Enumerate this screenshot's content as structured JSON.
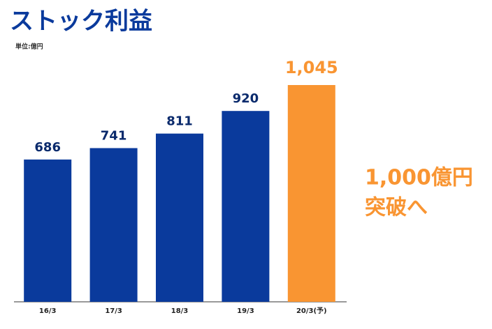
{
  "chart_data": {
    "type": "bar",
    "title": "ストック利益",
    "subtitle": "単位:億円",
    "categories": [
      "16/3",
      "17/3",
      "18/3",
      "19/3",
      "20/3(予)"
    ],
    "values": [
      686,
      741,
      811,
      920,
      1045
    ],
    "value_labels": [
      "686",
      "741",
      "811",
      "920",
      "1,045"
    ],
    "colors": [
      "#0a3a9c",
      "#0a3a9c",
      "#0a3a9c",
      "#0a3a9c",
      "#f99532"
    ],
    "annotation": [
      "1,000億円",
      "突破へ"
    ]
  }
}
